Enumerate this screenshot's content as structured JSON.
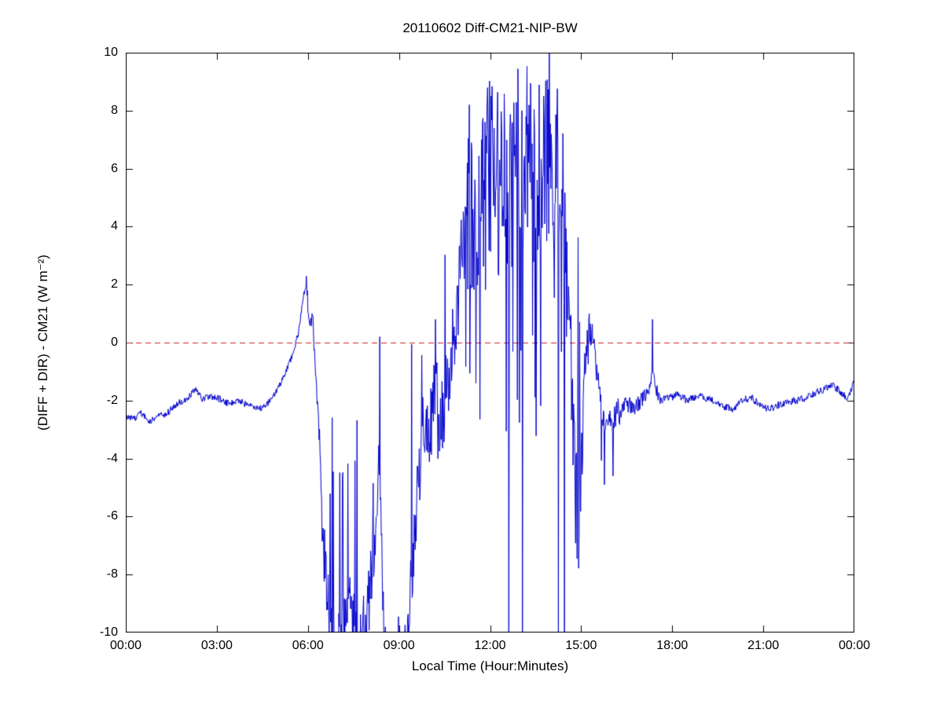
{
  "chart_data": {
    "type": "line",
    "title": "20110602 Diff-CM21-NIP-BW",
    "xlabel": "Local Time (Hour:Minutes)",
    "ylabel": "(DIFF + DIR) - CM21 (W m⁻²)",
    "xlim": [
      0,
      24
    ],
    "ylim": [
      -10,
      10
    ],
    "grid": false,
    "legend": null,
    "background": "#ffffff",
    "axes_color": "#000000",
    "xticks": [
      {
        "value": 0,
        "label": "00:00"
      },
      {
        "value": 3,
        "label": "03:00"
      },
      {
        "value": 6,
        "label": "06:00"
      },
      {
        "value": 9,
        "label": "09:00"
      },
      {
        "value": 12,
        "label": "12:00"
      },
      {
        "value": 15,
        "label": "15:00"
      },
      {
        "value": 18,
        "label": "18:00"
      },
      {
        "value": 21,
        "label": "21:00"
      },
      {
        "value": 24,
        "label": "00:00"
      }
    ],
    "yticks": [
      {
        "value": -10,
        "label": "-10"
      },
      {
        "value": -8,
        "label": "-8"
      },
      {
        "value": -6,
        "label": "-6"
      },
      {
        "value": -4,
        "label": "-4"
      },
      {
        "value": -2,
        "label": "-2"
      },
      {
        "value": 0,
        "label": "0"
      },
      {
        "value": 2,
        "label": "2"
      },
      {
        "value": 4,
        "label": "4"
      },
      {
        "value": 6,
        "label": "6"
      },
      {
        "value": 8,
        "label": "8"
      },
      {
        "value": 10,
        "label": "10"
      }
    ],
    "zero_line": {
      "y": 0,
      "color": "#cc2222",
      "style": "dashed"
    },
    "series": [
      {
        "name": "(DIFF + DIR) - CM21",
        "color": "#0000cc",
        "seed": 20110602,
        "sample_step_hours": 0.016666667,
        "keypoints": [
          [
            0.0,
            -2.5
          ],
          [
            0.25,
            -2.65
          ],
          [
            0.5,
            -2.45
          ],
          [
            0.8,
            -2.7
          ],
          [
            1.1,
            -2.55
          ],
          [
            1.4,
            -2.4
          ],
          [
            1.7,
            -2.1
          ],
          [
            2.0,
            -1.95
          ],
          [
            2.3,
            -1.6
          ],
          [
            2.5,
            -1.95
          ],
          [
            2.8,
            -1.85
          ],
          [
            3.1,
            -1.95
          ],
          [
            3.4,
            -2.1
          ],
          [
            3.7,
            -2.0
          ],
          [
            4.0,
            -2.15
          ],
          [
            4.3,
            -2.3
          ],
          [
            4.6,
            -2.2
          ],
          [
            4.9,
            -1.8
          ],
          [
            5.2,
            -1.2
          ],
          [
            5.5,
            -0.4
          ],
          [
            5.7,
            0.4
          ],
          [
            5.85,
            1.6
          ],
          [
            5.95,
            2.0
          ],
          [
            6.05,
            0.7
          ],
          [
            6.15,
            1.0
          ],
          [
            6.3,
            -2.0
          ],
          [
            6.4,
            -3.6
          ],
          [
            6.5,
            -7.0
          ],
          [
            6.7,
            -9.5
          ],
          [
            7.0,
            -10.5
          ],
          [
            7.3,
            -8.5
          ],
          [
            7.5,
            -9.5
          ],
          [
            7.7,
            -10.5
          ],
          [
            8.0,
            -9.0
          ],
          [
            8.2,
            -6.5
          ],
          [
            8.35,
            -4.0
          ],
          [
            8.5,
            -10.0
          ],
          [
            8.7,
            -11.0
          ],
          [
            9.0,
            -11.0
          ],
          [
            9.3,
            -10.0
          ],
          [
            9.5,
            -6.5
          ],
          [
            9.7,
            -4.0
          ],
          [
            9.85,
            -2.5
          ],
          [
            10.0,
            -3.5
          ],
          [
            10.15,
            -1.5
          ],
          [
            10.3,
            -3.0
          ],
          [
            10.5,
            -2.0
          ],
          [
            10.7,
            -0.5
          ],
          [
            10.9,
            1.0
          ],
          [
            11.1,
            3.2
          ],
          [
            11.3,
            4.5
          ],
          [
            11.5,
            3.5
          ],
          [
            11.7,
            5.0
          ],
          [
            11.9,
            6.5
          ],
          [
            12.1,
            6.0
          ],
          [
            12.3,
            5.0
          ],
          [
            12.5,
            6.0
          ],
          [
            12.7,
            5.0
          ],
          [
            12.9,
            6.5
          ],
          [
            13.1,
            5.5
          ],
          [
            13.3,
            6.0
          ],
          [
            13.5,
            5.0
          ],
          [
            13.7,
            6.0
          ],
          [
            13.9,
            6.5
          ],
          [
            14.1,
            5.5
          ],
          [
            14.3,
            6.0
          ],
          [
            14.5,
            3.5
          ],
          [
            14.65,
            0.0
          ],
          [
            14.8,
            -5.0
          ],
          [
            14.95,
            -6.5
          ],
          [
            15.1,
            -1.0
          ],
          [
            15.25,
            0.5
          ],
          [
            15.4,
            0.0
          ],
          [
            15.55,
            -1.2
          ],
          [
            15.7,
            -2.6
          ],
          [
            15.85,
            -3.0
          ],
          [
            16.0,
            -2.7
          ],
          [
            16.2,
            -2.4
          ],
          [
            16.5,
            -2.1
          ],
          [
            16.8,
            -2.2
          ],
          [
            17.1,
            -1.9
          ],
          [
            17.35,
            -1.2
          ],
          [
            17.6,
            -2.0
          ],
          [
            17.9,
            -1.9
          ],
          [
            18.2,
            -1.8
          ],
          [
            18.5,
            -2.0
          ],
          [
            18.8,
            -1.85
          ],
          [
            19.1,
            -1.9
          ],
          [
            19.4,
            -2.05
          ],
          [
            19.7,
            -2.2
          ],
          [
            20.0,
            -2.3
          ],
          [
            20.3,
            -2.0
          ],
          [
            20.6,
            -1.9
          ],
          [
            20.9,
            -2.15
          ],
          [
            21.2,
            -2.3
          ],
          [
            21.5,
            -2.15
          ],
          [
            21.8,
            -2.05
          ],
          [
            22.1,
            -2.0
          ],
          [
            22.4,
            -1.9
          ],
          [
            22.7,
            -1.75
          ],
          [
            23.0,
            -1.6
          ],
          [
            23.3,
            -1.5
          ],
          [
            23.55,
            -1.7
          ],
          [
            23.8,
            -1.95
          ],
          [
            24.0,
            -1.35
          ]
        ],
        "noise_segments": [
          {
            "t0": 0.0,
            "t1": 4.6,
            "amp": 0.12,
            "spike_prob": 0,
            "spike_min": 0,
            "spike_max": 0
          },
          {
            "t0": 4.6,
            "t1": 5.95,
            "amp": 0.1,
            "spike_prob": 0,
            "spike_min": 0,
            "spike_max": 0
          },
          {
            "t0": 5.95,
            "t1": 6.45,
            "amp": 0.35,
            "spike_prob": 0,
            "spike_min": 0,
            "spike_max": 0
          },
          {
            "t0": 6.45,
            "t1": 8.55,
            "amp": 1.2,
            "spike_prob": 0.12,
            "spike_min": -6.0,
            "spike_max": -2.5
          },
          {
            "t0": 8.55,
            "t1": 9.35,
            "amp": 0.8,
            "spike_prob": 0.04,
            "spike_min": -9.5,
            "spike_max": -8.5
          },
          {
            "t0": 9.35,
            "t1": 10.35,
            "amp": 1.3,
            "spike_prob": 0.12,
            "spike_min": -7.0,
            "spike_max": 0.5
          },
          {
            "t0": 10.35,
            "t1": 11.25,
            "amp": 1.4,
            "spike_prob": 0.1,
            "spike_min": -2.0,
            "spike_max": 4.5
          },
          {
            "t0": 11.25,
            "t1": 14.55,
            "amp": 3.2,
            "spike_prob": 0.16,
            "spike_min": -3.5,
            "spike_max": 10.5
          },
          {
            "t0": 14.55,
            "t1": 15.1,
            "amp": 2.0,
            "spike_prob": 0.18,
            "spike_min": -10.5,
            "spike_max": 5.0
          },
          {
            "t0": 15.1,
            "t1": 15.6,
            "amp": 0.6,
            "spike_prob": 0.05,
            "spike_min": -1.5,
            "spike_max": 1.0
          },
          {
            "t0": 15.6,
            "t1": 16.3,
            "amp": 0.5,
            "spike_prob": 0.06,
            "spike_min": -5.0,
            "spike_max": -4.0
          },
          {
            "t0": 16.3,
            "t1": 17.6,
            "amp": 0.3,
            "spike_prob": 0,
            "spike_min": 0,
            "spike_max": 0
          },
          {
            "t0": 17.6,
            "t1": 24.1,
            "amp": 0.13,
            "spike_prob": 0,
            "spike_min": 0,
            "spike_max": 0
          }
        ],
        "events": [
          [
            8.37,
            0.2
          ],
          [
            10.2,
            0.8
          ],
          [
            11.32,
            8.2
          ],
          [
            12.62,
            -10.5
          ],
          [
            13.06,
            -10.5
          ],
          [
            14.25,
            -10.5
          ],
          [
            14.45,
            -10.5
          ],
          [
            15.27,
            1.0
          ],
          [
            15.77,
            -4.9
          ],
          [
            16.05,
            -4.6
          ],
          [
            17.35,
            0.8
          ]
        ]
      }
    ]
  }
}
